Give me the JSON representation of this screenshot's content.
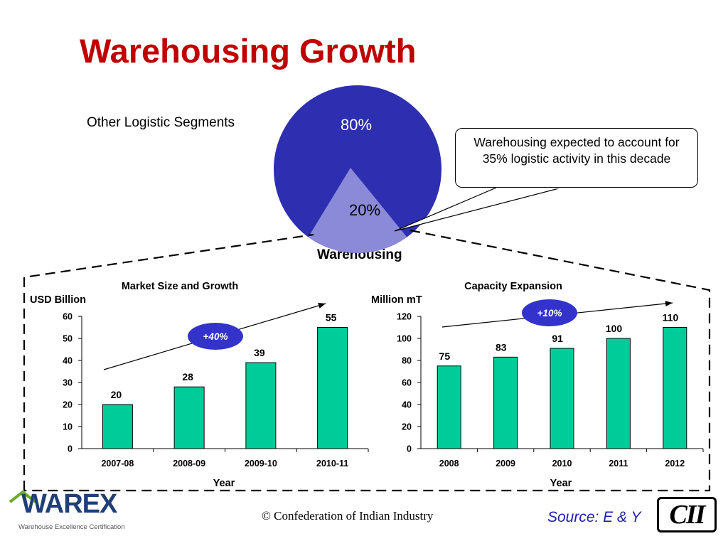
{
  "title": "Warehousing Growth",
  "pie": {
    "label_other": "Other Logistic Segments",
    "label_warehousing": "Warehousing",
    "slices": [
      {
        "name": "Other Logistic Segments",
        "value": 80,
        "label": "80%",
        "color": "#2e2eb0"
      },
      {
        "name": "Warehousing",
        "value": 20,
        "label": "20%",
        "color": "#8a8ad8"
      }
    ]
  },
  "callout": {
    "text": "Warehousing expected to account for 35% logistic activity in this decade"
  },
  "chart_data": [
    {
      "type": "bar",
      "title": "Market Size and Growth",
      "ylabel": "USD Billion",
      "xlabel": "Year",
      "categories": [
        "2007-08",
        "2008-09",
        "2009-10",
        "2010-11"
      ],
      "values": [
        20,
        28,
        39,
        55
      ],
      "ylim": [
        0,
        60
      ],
      "yticks": [
        0,
        10,
        20,
        30,
        40,
        50,
        60
      ],
      "bar_color": "#00cc99",
      "growth_badge": "+40%",
      "grid": false
    },
    {
      "type": "bar",
      "title": "Capacity Expansion",
      "ylabel": "Million mT",
      "xlabel": "Year",
      "categories": [
        "2008",
        "2009",
        "2010",
        "2011",
        "2012"
      ],
      "values": [
        75,
        83,
        91,
        100,
        110
      ],
      "ylim": [
        0,
        120
      ],
      "yticks": [
        0,
        20,
        40,
        60,
        80,
        100,
        120
      ],
      "bar_color": "#00cc99",
      "growth_badge": "+10%",
      "grid": false
    }
  ],
  "footer": {
    "copyright": "© Confederation of Indian Industry",
    "source": "Source: E & Y",
    "logo_left_word": "WAREX",
    "logo_left_sub": "Warehouse Excellence Certification",
    "logo_right": "CII"
  },
  "colors": {
    "title": "#c00000",
    "badge": "#3333cc",
    "source": "#1f1fa8"
  }
}
